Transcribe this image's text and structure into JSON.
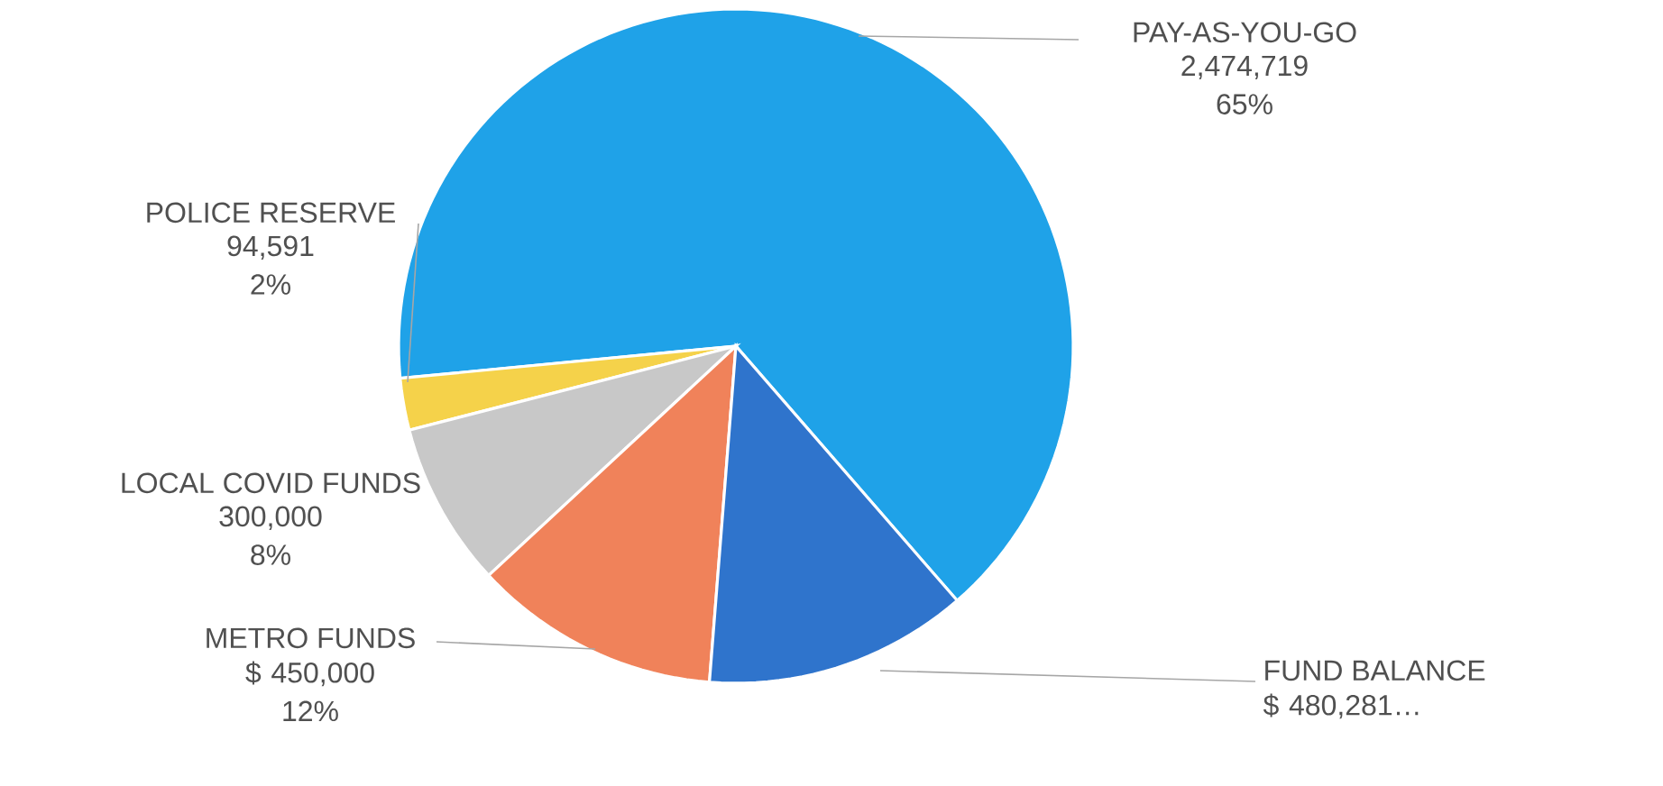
{
  "chart_data": {
    "type": "pie",
    "categories": [
      "PAY-AS-YOU-GO",
      "POLICE RESERVE",
      "LOCAL COVID FUNDS",
      "METRO FUNDS",
      "FUND BALANCE"
    ],
    "values": [
      2474719,
      94591,
      300000,
      450000,
      480281
    ],
    "colors": [
      "#1fa2e8",
      "#f5d24a",
      "#c8c8c8",
      "#f0825a",
      "#2f74cc"
    ],
    "value_labels": [
      "2,474,719 65%",
      "94,591 2%",
      "300,000 8%",
      "$ 450,000 12%",
      "$ 480,281…"
    ]
  }
}
